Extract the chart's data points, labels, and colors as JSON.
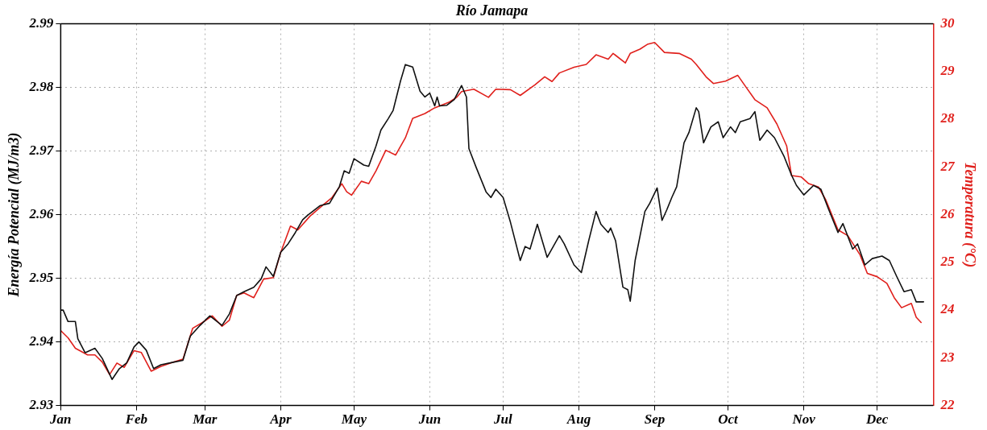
{
  "chart_data": {
    "type": "line",
    "title": "Río Jamapa",
    "ylabel": "Energía Potencial (MJ/m3)",
    "y2label": "Temperatura (°C)",
    "xlim": [
      "--01-01",
      "--12-24"
    ],
    "xticks": [
      {
        "value": "--01-01",
        "label": "Jan"
      },
      {
        "value": "--02-01",
        "label": "Feb"
      },
      {
        "value": "--03-01",
        "label": "Mar"
      },
      {
        "value": "--04-01",
        "label": "Apr"
      },
      {
        "value": "--05-01",
        "label": "May"
      },
      {
        "value": "--06-01",
        "label": "Jun"
      },
      {
        "value": "--07-01",
        "label": "Jul"
      },
      {
        "value": "--08-01",
        "label": "Aug"
      },
      {
        "value": "--09-01",
        "label": "Sep"
      },
      {
        "value": "--10-01",
        "label": "Oct"
      },
      {
        "value": "--11-01",
        "label": "Nov"
      },
      {
        "value": "--12-01",
        "label": "Dec"
      }
    ],
    "ylim": [
      2.93,
      2.99
    ],
    "yticks": [
      2.93,
      2.94,
      2.95,
      2.96,
      2.97,
      2.98,
      2.99
    ],
    "y2lim": [
      22,
      30
    ],
    "y2ticks": [
      22,
      23,
      24,
      25,
      26,
      27,
      28,
      29,
      30
    ],
    "grid": true,
    "legend": false,
    "marker": "none",
    "line_style": "solid",
    "series": [
      {
        "color": "#111111",
        "x": [
          "--01-01",
          "--01-02",
          "--01-04",
          "--01-07",
          "--01-08",
          "--01-11",
          "--01-15",
          "--01-18",
          "--01-22",
          "--01-25",
          "--01-28",
          "--01-31",
          "--02-02",
          "--02-05",
          "--02-08",
          "--02-11",
          "--02-16",
          "--02-20",
          "--02-23",
          "--02-27",
          "--03-03",
          "--03-06",
          "--03-08",
          "--03-11",
          "--03-14",
          "--03-17",
          "--03-21",
          "--03-24",
          "--03-26",
          "--03-29",
          "--04-01",
          "--04-04",
          "--04-07",
          "--04-10",
          "--04-12",
          "--04-17",
          "--04-21",
          "--04-25",
          "--04-27",
          "--04-29",
          "--05-01",
          "--05-05",
          "--05-07",
          "--05-10",
          "--05-12",
          "--05-15",
          "--05-17",
          "--05-20",
          "--05-22",
          "--05-25",
          "--05-28",
          "--05-30",
          "--06-01",
          "--06-03",
          "--06-04",
          "--06-05",
          "--06-08",
          "--06-11",
          "--06-14",
          "--06-16",
          "--06-17",
          "--06-20",
          "--06-24",
          "--06-26",
          "--06-28",
          "--07-01",
          "--07-04",
          "--07-08",
          "--07-10",
          "--07-12",
          "--07-15",
          "--07-17",
          "--07-19",
          "--07-24",
          "--07-26",
          "--07-30",
          "--08-02",
          "--08-05",
          "--08-08",
          "--08-10",
          "--08-13",
          "--08-14",
          "--08-16",
          "--08-19",
          "--08-21",
          "--08-22",
          "--08-24",
          "--08-28",
          "--08-30",
          "--09-02",
          "--09-04",
          "--09-06",
          "--09-08",
          "--09-10",
          "--09-13",
          "--09-15",
          "--09-18",
          "--09-19",
          "--09-21",
          "--09-24",
          "--09-27",
          "--09-29",
          "--10-02",
          "--10-04",
          "--10-06",
          "--10-10",
          "--10-12",
          "--10-14",
          "--10-17",
          "--10-20",
          "--10-24",
          "--10-27",
          "--10-29",
          "--11-01",
          "--11-05",
          "--11-08",
          "--11-11",
          "--11-15",
          "--11-17",
          "--11-21",
          "--11-23",
          "--11-26",
          "--11-29",
          "--12-03",
          "--12-06",
          "--12-09",
          "--12-12",
          "--12-15",
          "--12-17",
          "--12-20"
        ],
        "values": [
          2.945,
          2.945,
          2.9432,
          2.9432,
          2.9405,
          2.9383,
          2.939,
          2.9374,
          2.9341,
          2.9358,
          2.9367,
          2.9392,
          2.94,
          2.9387,
          2.9358,
          2.9364,
          2.9368,
          2.9371,
          2.9409,
          2.9426,
          2.9441,
          2.9432,
          2.9426,
          2.9444,
          2.9473,
          2.9479,
          2.9486,
          2.9499,
          2.9518,
          2.9503,
          2.9541,
          2.9554,
          2.9572,
          2.9592,
          2.9599,
          2.9614,
          2.9618,
          2.9644,
          2.9669,
          2.9665,
          2.9688,
          2.9678,
          2.9676,
          2.9708,
          2.9733,
          2.9751,
          2.9764,
          2.981,
          2.9836,
          2.9832,
          2.9794,
          2.9785,
          2.9791,
          2.9771,
          2.9785,
          2.9771,
          2.9772,
          2.9781,
          2.9803,
          2.9785,
          2.9704,
          2.9674,
          2.9636,
          2.9627,
          2.964,
          2.9627,
          2.9588,
          2.9528,
          2.955,
          2.9546,
          2.9585,
          2.9559,
          2.9533,
          2.9567,
          2.9554,
          2.9521,
          2.9509,
          2.9559,
          2.9605,
          2.9585,
          2.9572,
          2.9579,
          2.9559,
          2.9486,
          2.9482,
          2.9464,
          2.9528,
          2.9605,
          2.9618,
          2.9642,
          2.9591,
          2.9608,
          2.9627,
          2.9644,
          2.9713,
          2.9729,
          2.9768,
          2.9762,
          2.9713,
          2.9738,
          2.9746,
          2.9721,
          2.9738,
          2.9729,
          2.9746,
          2.9751,
          2.9762,
          2.9717,
          2.9733,
          2.9721,
          2.9691,
          2.9662,
          2.9646,
          2.9631,
          2.9646,
          2.964,
          2.961,
          2.9572,
          2.9586,
          2.9546,
          2.9554,
          2.9521,
          2.9531,
          2.9535,
          2.9528,
          2.9503,
          2.9479,
          2.9482,
          2.9463,
          2.9463
        ]
      },
      {
        "color": "#e0201c",
        "axis": "y2",
        "x": [
          "--01-01",
          "--01-04",
          "--01-07",
          "--01-12",
          "--01-15",
          "--01-18",
          "--01-21",
          "--01-24",
          "--01-27",
          "--01-31",
          "--02-03",
          "--02-07",
          "--02-11",
          "--02-16",
          "--02-20",
          "--02-24",
          "--02-28",
          "--03-04",
          "--03-08",
          "--03-11",
          "--03-14",
          "--03-17",
          "--03-21",
          "--03-25",
          "--03-29",
          "--04-01",
          "--04-05",
          "--04-08",
          "--04-13",
          "--04-18",
          "--04-22",
          "--04-26",
          "--04-28",
          "--04-30",
          "--05-04",
          "--05-07",
          "--05-10",
          "--05-14",
          "--05-18",
          "--05-22",
          "--05-25",
          "--05-30",
          "--06-03",
          "--06-09",
          "--06-12",
          "--06-14",
          "--06-19",
          "--06-25",
          "--06-28",
          "--07-04",
          "--07-08",
          "--07-14",
          "--07-18",
          "--07-21",
          "--07-24",
          "--07-30",
          "--08-04",
          "--08-08",
          "--08-13",
          "--08-15",
          "--08-20",
          "--08-22",
          "--08-26",
          "--08-29",
          "--09-01",
          "--09-05",
          "--09-11",
          "--09-16",
          "--09-18",
          "--09-22",
          "--09-25",
          "--09-30",
          "--10-05",
          "--10-08",
          "--10-12",
          "--10-17",
          "--10-21",
          "--10-25",
          "--10-27",
          "--10-31",
          "--11-03",
          "--11-07",
          "--11-10",
          "--11-15",
          "--11-19",
          "--11-24",
          "--11-27",
          "--12-01",
          "--12-05",
          "--12-08",
          "--12-11",
          "--12-15",
          "--12-17",
          "--12-19"
        ],
        "values": [
          23.57,
          23.42,
          23.2,
          23.06,
          23.06,
          22.91,
          22.65,
          22.89,
          22.8,
          23.15,
          23.11,
          22.72,
          22.82,
          22.91,
          22.97,
          23.62,
          23.74,
          23.88,
          23.66,
          23.79,
          24.31,
          24.36,
          24.26,
          24.65,
          24.68,
          25.21,
          25.76,
          25.68,
          25.97,
          26.19,
          26.36,
          26.65,
          26.48,
          26.41,
          26.7,
          26.65,
          26.92,
          27.35,
          27.25,
          27.61,
          28.02,
          28.12,
          28.24,
          28.36,
          28.46,
          28.58,
          28.63,
          28.46,
          28.63,
          28.62,
          28.5,
          28.72,
          28.89,
          28.79,
          28.97,
          29.09,
          29.15,
          29.35,
          29.26,
          29.38,
          29.18,
          29.38,
          29.47,
          29.57,
          29.61,
          29.4,
          29.38,
          29.26,
          29.15,
          28.89,
          28.75,
          28.8,
          28.92,
          28.7,
          28.41,
          28.24,
          27.9,
          27.44,
          26.82,
          26.79,
          26.65,
          26.58,
          26.31,
          25.68,
          25.56,
          25.16,
          24.77,
          24.7,
          24.56,
          24.26,
          24.05,
          24.14,
          23.85,
          23.74
        ]
      }
    ]
  }
}
